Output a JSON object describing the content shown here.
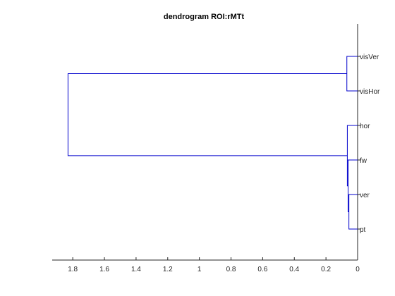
{
  "chart_data": {
    "type": "dendrogram",
    "orientation": "left",
    "title": "dendrogram ROI:rMTt",
    "xlabel": "",
    "ylabel": "",
    "xlim": [
      1.93,
      0
    ],
    "x_ticks": [
      1.8,
      1.6,
      1.4,
      1.2,
      1,
      0.8,
      0.6,
      0.4,
      0.2,
      0
    ],
    "x_tick_labels": [
      "1.8",
      "1.6",
      "1.4",
      "1.2",
      "1",
      "0.8",
      "0.6",
      "0.4",
      "0.2",
      "0"
    ],
    "leaves": [
      "visVer",
      "visHor",
      "hor",
      "fw",
      "ver",
      "pt"
    ],
    "merges": [
      {
        "id": "c1",
        "left": "ver",
        "right": "pt",
        "height": 0.055
      },
      {
        "id": "c2",
        "left": "fw",
        "right": "c1",
        "height": 0.06
      },
      {
        "id": "c3",
        "left": "hor",
        "right": "c2",
        "height": 0.065
      },
      {
        "id": "c4",
        "left": "visVer",
        "right": "visHor",
        "height": 0.068
      },
      {
        "id": "c5",
        "left": "c4",
        "right": "c3",
        "height": 1.83
      }
    ],
    "grid": false,
    "legend": "none",
    "line_color": "#0000cc"
  }
}
